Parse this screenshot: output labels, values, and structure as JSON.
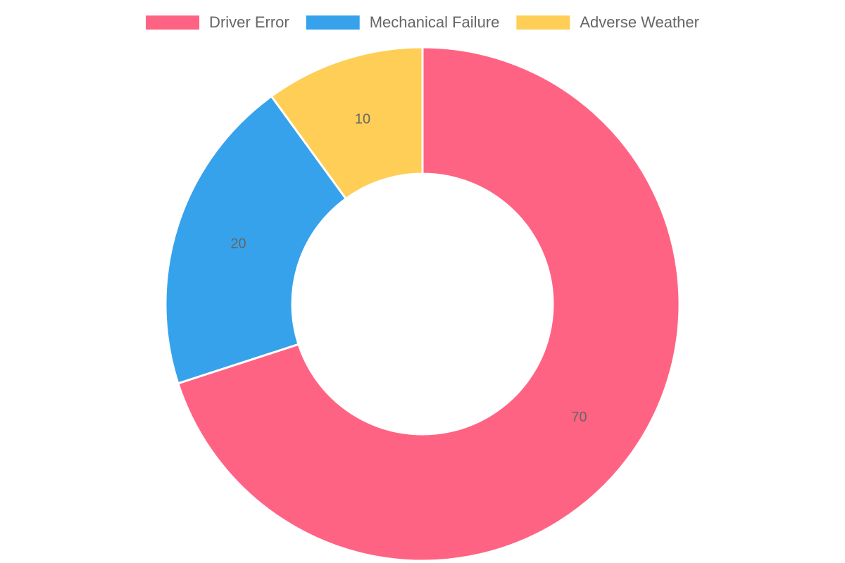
{
  "chart_data": {
    "type": "doughnut",
    "categories": [
      "Driver Error",
      "Mechanical Failure",
      "Adverse Weather"
    ],
    "values": [
      70,
      20,
      10
    ],
    "colors": [
      "#ff6384",
      "#36a2eb",
      "#ffce56"
    ],
    "legend": "top"
  }
}
